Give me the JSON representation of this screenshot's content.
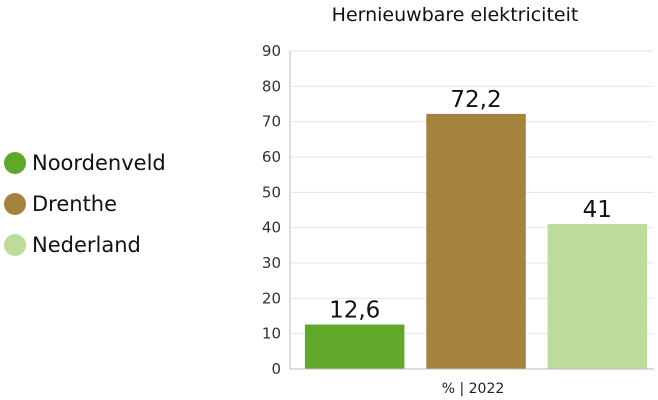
{
  "chart_data": {
    "type": "bar",
    "title": "Hernieuwbare elektriciteit",
    "xlabel": "% | 2022",
    "ylabel": "",
    "ylim": [
      0,
      90
    ],
    "yticks": [
      0,
      10,
      20,
      30,
      40,
      50,
      60,
      70,
      80,
      90
    ],
    "grid": true,
    "legend_position": "left",
    "categories": [
      "Noordenveld",
      "Drenthe",
      "Nederland"
    ],
    "values": [
      12.6,
      72.2,
      41
    ],
    "value_labels": [
      "12,6",
      "72,2",
      "41"
    ],
    "colors": [
      "#60a82a",
      "#a6833c",
      "#bddb9b"
    ]
  }
}
